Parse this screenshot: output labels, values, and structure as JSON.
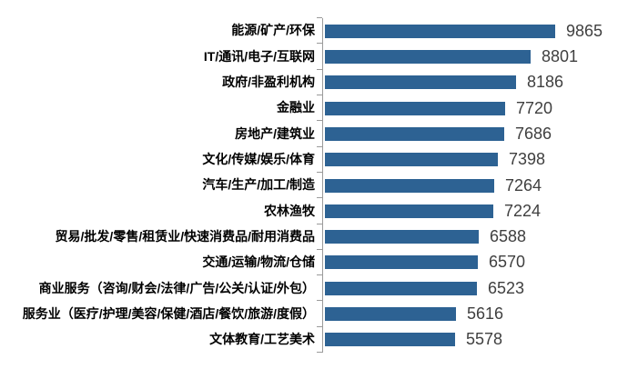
{
  "chart_data": {
    "type": "bar",
    "orientation": "horizontal",
    "title": "",
    "xlabel": "",
    "ylabel": "",
    "legend_position": "none",
    "grid": false,
    "value_labels_shown": true,
    "categories": [
      "能源/矿产/环保",
      "IT/通讯/电子/互联网",
      "政府/非盈利机构",
      "金融业",
      "房地产/建筑业",
      "文化/传媒/娱乐/体育",
      "汽车/生产/加工/制造",
      "农林渔牧",
      "贸易/批发/零售/租赁业/快速消费品/耐用消费品",
      "交通/运输/物流/仓储",
      "商业服务（咨询/财会/法律/广告/公关/认证/外包）",
      "服务业（医疗/护理/美容/保健/酒店/餐饮/旅游/度假）",
      "文体教育/工艺美术"
    ],
    "values": [
      9865,
      8801,
      8186,
      7720,
      7686,
      7398,
      7264,
      7224,
      6588,
      6570,
      6523,
      5616,
      5578
    ],
    "xlim_estimate": [
      0,
      12000
    ],
    "colors": {
      "bar": "#2d6293",
      "value_label": "#3f3f3f",
      "category_label": "#000000",
      "axis": "#9a9a9a",
      "background": "#ffffff"
    }
  }
}
